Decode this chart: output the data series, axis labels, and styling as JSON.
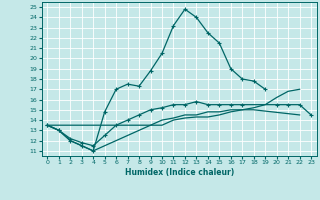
{
  "xlabel": "Humidex (Indice chaleur)",
  "background_color": "#c5e8e8",
  "line_color": "#006666",
  "grid_color": "#ffffff",
  "xlim": [
    -0.5,
    23.5
  ],
  "ylim": [
    10.5,
    25.5
  ],
  "xticks": [
    0,
    1,
    2,
    3,
    4,
    5,
    6,
    7,
    8,
    9,
    10,
    11,
    12,
    13,
    14,
    15,
    16,
    17,
    18,
    19,
    20,
    21,
    22,
    23
  ],
  "yticks": [
    11,
    12,
    13,
    14,
    15,
    16,
    17,
    18,
    19,
    20,
    21,
    22,
    23,
    24,
    25
  ],
  "curve1_x": [
    0,
    1,
    2,
    3,
    4,
    5,
    6,
    7,
    8,
    9,
    10,
    11,
    12,
    13,
    14,
    15,
    16,
    17,
    18,
    19
  ],
  "curve1_y": [
    13.5,
    13.0,
    12.0,
    11.5,
    11.0,
    14.8,
    17.0,
    17.5,
    17.3,
    18.8,
    20.5,
    23.2,
    24.8,
    24.0,
    22.5,
    21.5,
    19.0,
    18.0,
    17.8,
    17.0
  ],
  "curve2_x": [
    0,
    1,
    2,
    3,
    4,
    5,
    6,
    7,
    8,
    9,
    10,
    11,
    12,
    13,
    14,
    15,
    16,
    17,
    20,
    21,
    22,
    23
  ],
  "curve2_y": [
    13.5,
    13.0,
    12.2,
    11.8,
    11.5,
    12.5,
    13.5,
    14.0,
    14.5,
    15.0,
    15.2,
    15.5,
    15.5,
    15.8,
    15.5,
    15.5,
    15.5,
    15.5,
    15.5,
    15.5,
    15.5,
    14.5
  ],
  "curve3_x": [
    0,
    1,
    2,
    3,
    4,
    5,
    6,
    7,
    8,
    9,
    10,
    11,
    12,
    13,
    14,
    15,
    16,
    17,
    18,
    19,
    20,
    21,
    22
  ],
  "curve3_y": [
    13.5,
    13.0,
    12.0,
    11.5,
    11.0,
    11.5,
    12.0,
    12.5,
    13.0,
    13.5,
    14.0,
    14.2,
    14.5,
    14.5,
    14.8,
    14.8,
    15.0,
    15.0,
    15.2,
    15.5,
    16.2,
    16.8,
    17.0
  ],
  "curve4_x": [
    0,
    10,
    11,
    12,
    13,
    14,
    15,
    16,
    17,
    18,
    22
  ],
  "curve4_y": [
    13.5,
    13.5,
    14.0,
    14.2,
    14.3,
    14.3,
    14.5,
    14.8,
    15.0,
    15.0,
    14.5
  ]
}
